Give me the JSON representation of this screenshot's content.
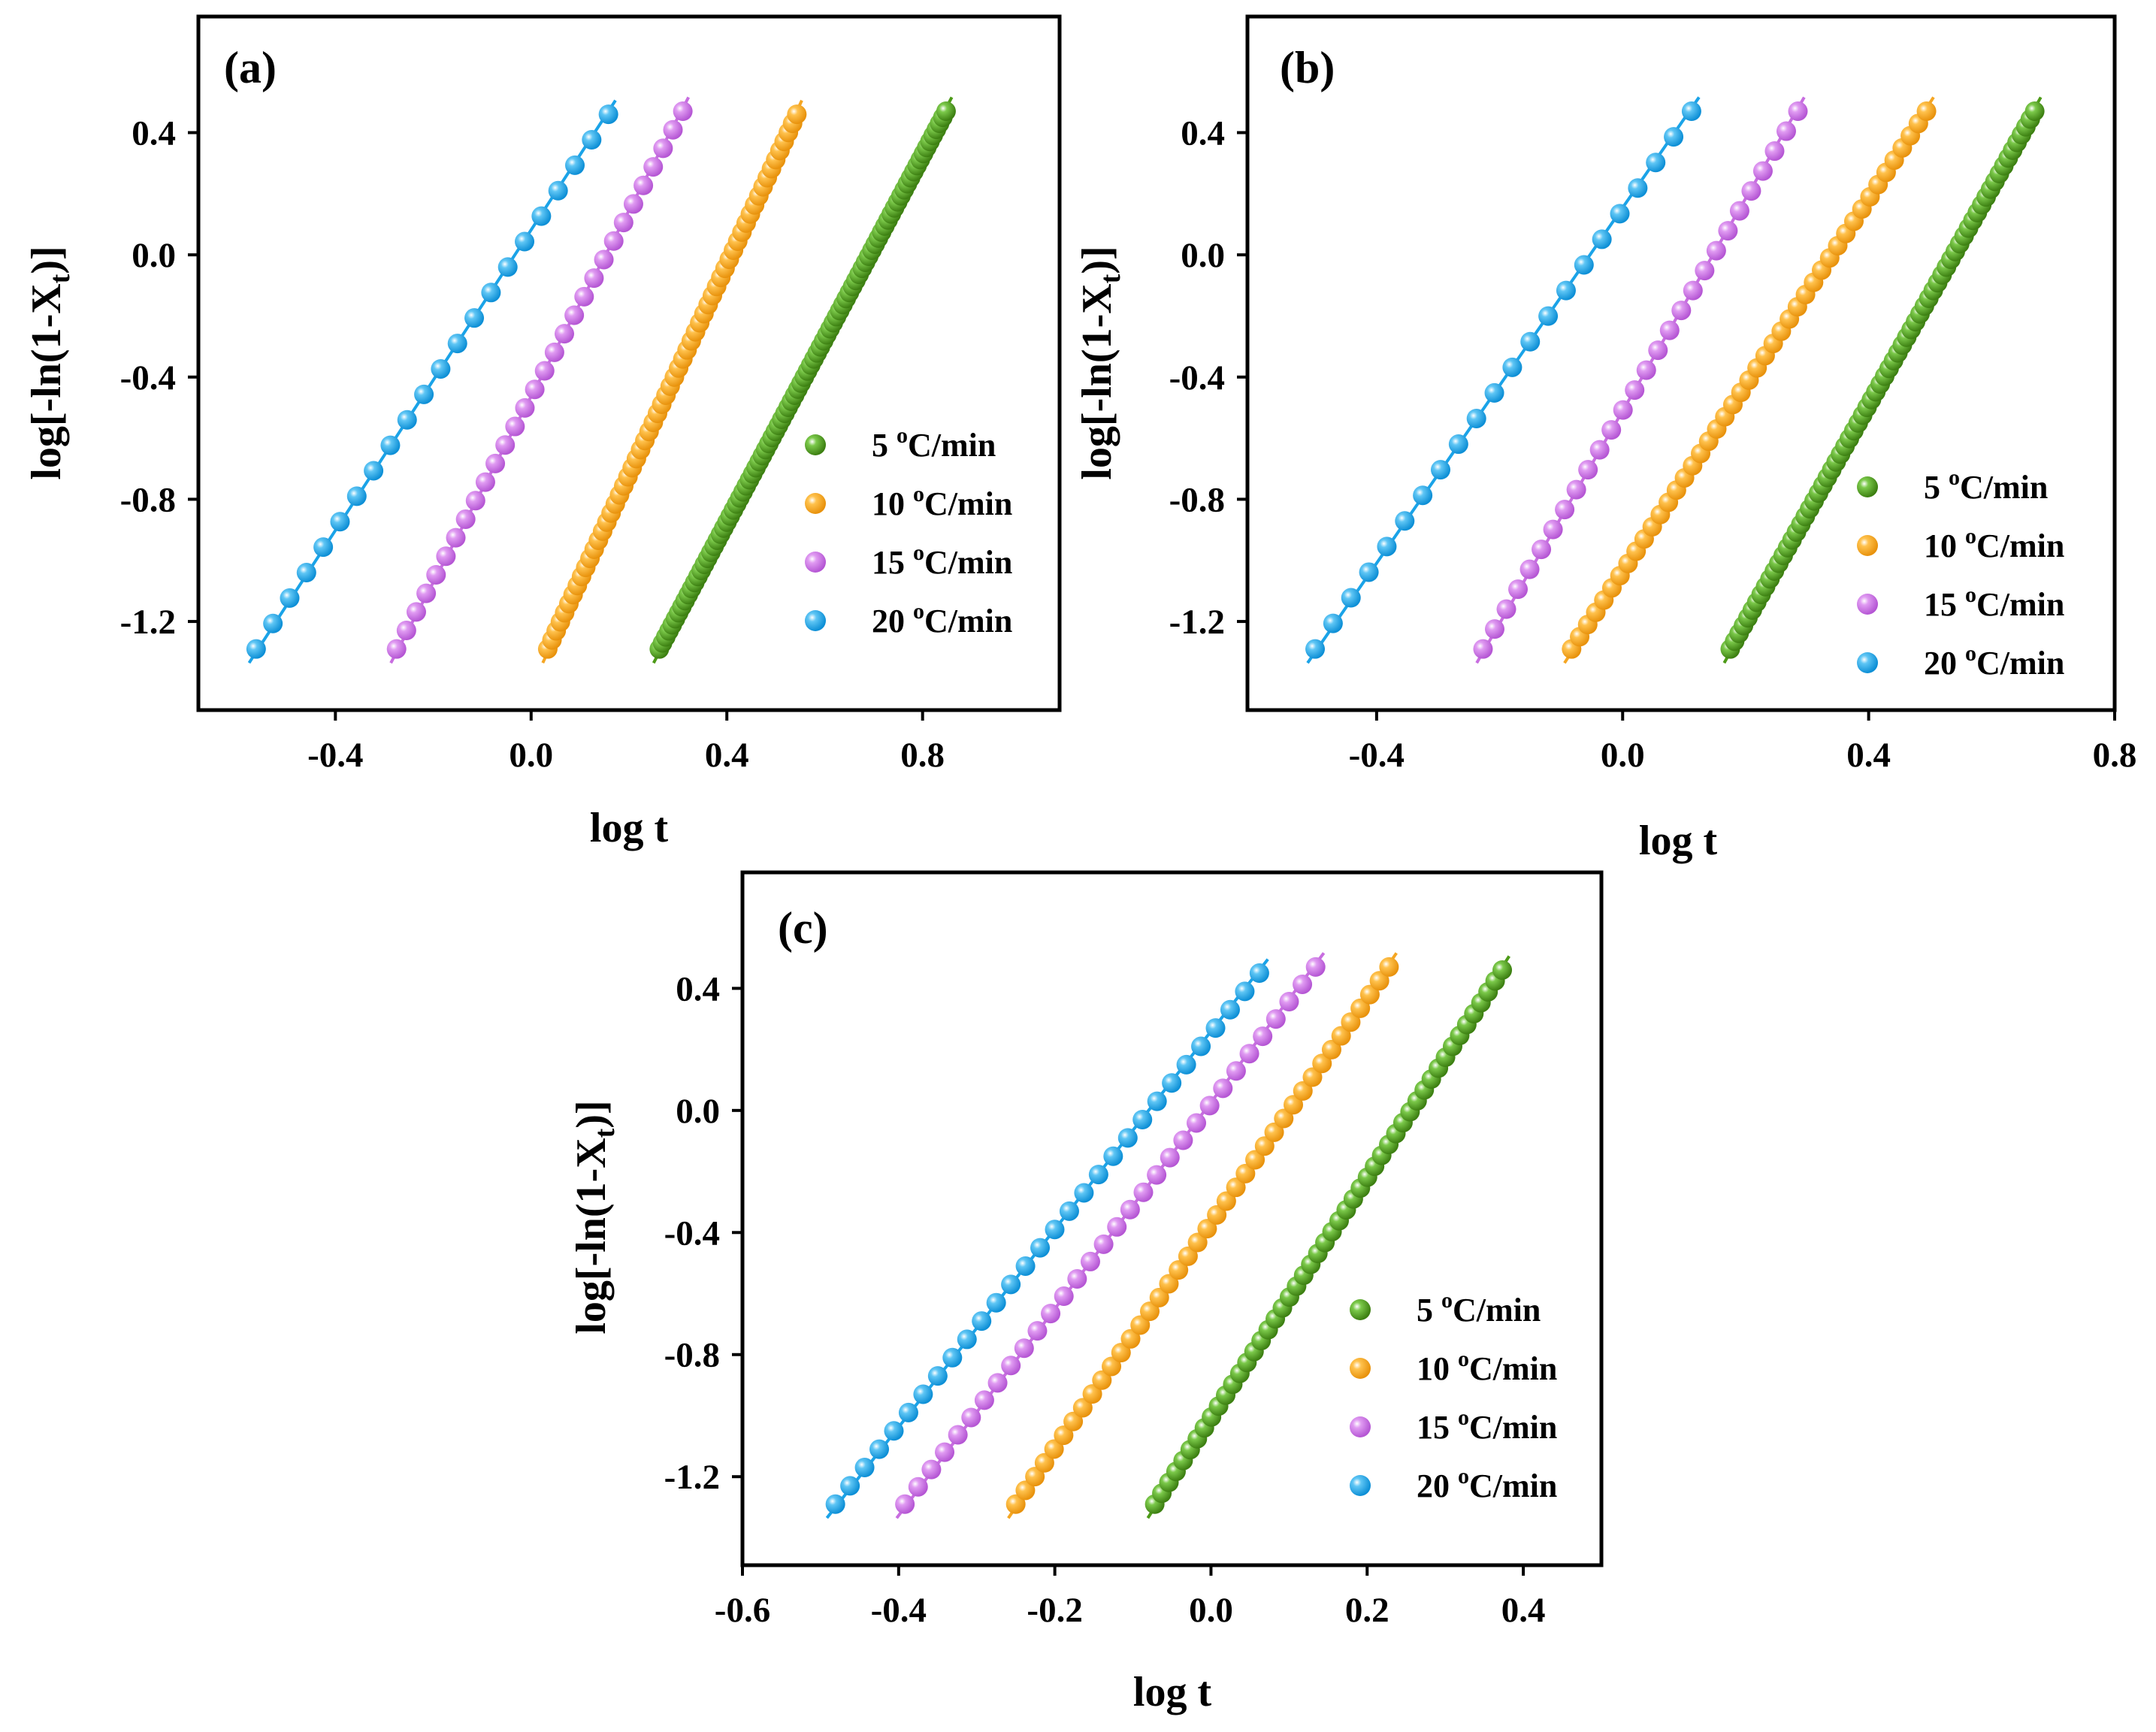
{
  "colors": {
    "5 oC/min": "#4c9a17",
    "10 oC/min": "#f5a623",
    "15 oC/min": "#c86de0",
    "20 oC/min": "#1aa3e8"
  },
  "chart_data": [
    {
      "type": "scatter",
      "panel_label": "(a)",
      "xlabel": "log t",
      "ylabel": "log[-ln(1-X",
      "ylabel_sub": "t",
      "ylabel_end": ")]",
      "xlim": [
        -0.68,
        1.08
      ],
      "ylim": [
        -1.49,
        0.78
      ],
      "xticks": [
        -0.4,
        0.0,
        0.4,
        0.8
      ],
      "xtick_labels": [
        "-0.4",
        "0.0",
        "0.4",
        "0.8"
      ],
      "yticks": [
        0.4,
        0.0,
        -0.4,
        -0.8,
        -1.2
      ],
      "ytick_labels": [
        "0.4",
        "0.0",
        "-0.4",
        "-0.8",
        "-1.2"
      ],
      "legend_position": "lower-right",
      "series": [
        {
          "name": "5",
          "unit": "C/min",
          "sup": "o",
          "color_key": "5 oC/min",
          "x_start": 0.262,
          "x_end": 0.848,
          "y_start": -1.29,
          "y_end": 0.47,
          "points": 90
        },
        {
          "name": "10",
          "unit": "C/min",
          "sup": "o",
          "color_key": "10 oC/min",
          "x_start": 0.034,
          "x_end": 0.543,
          "y_start": -1.29,
          "y_end": 0.46,
          "points": 60
        },
        {
          "name": "15",
          "unit": "C/min",
          "sup": "o",
          "color_key": "15 oC/min",
          "x_start": -0.275,
          "x_end": 0.31,
          "y_start": -1.29,
          "y_end": 0.47,
          "points": 30
        },
        {
          "name": "20",
          "unit": "C/min",
          "sup": "o",
          "color_key": "20 oC/min",
          "x_start": -0.562,
          "x_end": 0.158,
          "y_start": -1.29,
          "y_end": 0.46,
          "points": 22
        }
      ]
    },
    {
      "type": "scatter",
      "panel_label": "(b)",
      "xlabel": "log t",
      "ylabel": "log[-ln(1-X",
      "ylabel_sub": "t",
      "ylabel_end": ")]",
      "xlim": [
        -0.61,
        0.8
      ],
      "ylim": [
        -1.49,
        0.78
      ],
      "xticks": [
        -0.4,
        0.0,
        0.4,
        0.8
      ],
      "xtick_labels": [
        "-0.4",
        "0.0",
        "0.4",
        "0.8"
      ],
      "yticks": [
        0.4,
        0.0,
        -0.4,
        -0.8,
        -1.2
      ],
      "ytick_labels": [
        "0.4",
        "0.0",
        "-0.4",
        "-0.8",
        "-1.2"
      ],
      "legend_position": "lower-right",
      "series": [
        {
          "name": "5",
          "unit": "C/min",
          "sup": "o",
          "color_key": "5 oC/min",
          "x_start": 0.175,
          "x_end": 0.67,
          "y_start": -1.29,
          "y_end": 0.47,
          "points": 70
        },
        {
          "name": "10",
          "unit": "C/min",
          "sup": "o",
          "color_key": "10 oC/min",
          "x_start": -0.083,
          "x_end": 0.494,
          "y_start": -1.29,
          "y_end": 0.47,
          "points": 45
        },
        {
          "name": "15",
          "unit": "C/min",
          "sup": "o",
          "color_key": "15 oC/min",
          "x_start": -0.227,
          "x_end": 0.285,
          "y_start": -1.29,
          "y_end": 0.47,
          "points": 28
        },
        {
          "name": "20",
          "unit": "C/min",
          "sup": "o",
          "color_key": "20 oC/min",
          "x_start": -0.5,
          "x_end": 0.112,
          "y_start": -1.29,
          "y_end": 0.47,
          "points": 22
        }
      ]
    },
    {
      "type": "scatter",
      "panel_label": "(c)",
      "xlabel": "log t",
      "ylabel": "log[-ln(1-X",
      "ylabel_sub": "t",
      "ylabel_end": ")]",
      "xlim": [
        -0.6,
        0.5
      ],
      "ylim": [
        -1.49,
        0.78
      ],
      "xticks": [
        -0.6,
        -0.4,
        -0.2,
        0.0,
        0.2,
        0.4
      ],
      "xtick_labels": [
        "-0.6",
        "-0.4",
        "-0.2",
        "0.0",
        "0.2",
        "0.4"
      ],
      "yticks": [
        0.4,
        0.0,
        -0.4,
        -0.8,
        -1.2
      ],
      "ytick_labels": [
        "0.4",
        "0.0",
        "-0.4",
        "-0.8",
        "-1.2"
      ],
      "legend_position": "lower-right",
      "series": [
        {
          "name": "5",
          "unit": "C/min",
          "sup": "o",
          "color_key": "5 oC/min",
          "x_start": -0.072,
          "x_end": 0.373,
          "y_start": -1.29,
          "y_end": 0.46,
          "points": 50
        },
        {
          "name": "10",
          "unit": "C/min",
          "sup": "o",
          "color_key": "10 oC/min",
          "x_start": -0.25,
          "x_end": 0.228,
          "y_start": -1.29,
          "y_end": 0.47,
          "points": 40
        },
        {
          "name": "15",
          "unit": "C/min",
          "sup": "o",
          "color_key": "15 oC/min",
          "x_start": -0.392,
          "x_end": 0.134,
          "y_start": -1.29,
          "y_end": 0.47,
          "points": 32
        },
        {
          "name": "20",
          "unit": "C/min",
          "sup": "o",
          "color_key": "20 oC/min",
          "x_start": -0.481,
          "x_end": 0.062,
          "y_start": -1.29,
          "y_end": 0.45,
          "points": 30
        }
      ]
    }
  ]
}
